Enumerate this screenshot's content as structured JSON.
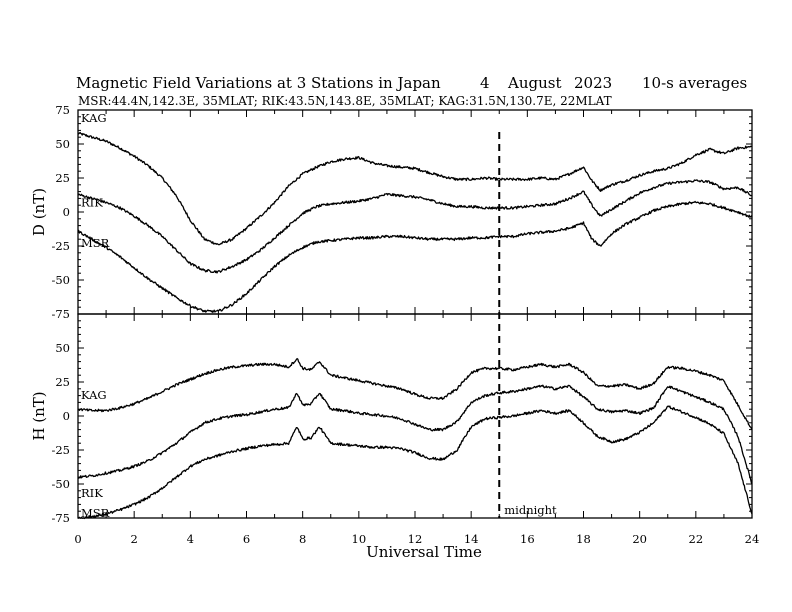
{
  "title": {
    "main": "Magnetic Field Variations at 3 Stations in Japan",
    "day": "4",
    "month": "August",
    "year": "2023",
    "averaging": "10-s averages"
  },
  "subtitle": "MSR:44.4N,142.3E, 35MLAT;  RIK:43.5N,143.8E, 35MLAT;  KAG:31.5N,130.7E, 22MLAT",
  "chart_data": [
    {
      "type": "line",
      "panel": "D",
      "ylabel": "D (nT)",
      "xlabel": "",
      "xlim": [
        0,
        24
      ],
      "ylim": [
        -75,
        75
      ],
      "yticks": [
        75,
        50,
        25,
        0,
        -25,
        -50,
        -75
      ],
      "xticks": [
        0,
        2,
        4,
        6,
        8,
        10,
        12,
        14,
        16,
        18,
        20,
        22,
        24
      ],
      "series": [
        {
          "name": "KAG",
          "x": [
            0,
            0.5,
            1,
            1.5,
            2,
            2.5,
            3,
            3.5,
            4,
            4.5,
            5,
            5.5,
            6,
            6.5,
            7,
            7.5,
            8,
            8.5,
            9,
            9.5,
            10,
            10.5,
            11,
            11.5,
            12,
            12.5,
            13,
            13.5,
            14,
            14.5,
            15,
            15.5,
            16,
            16.5,
            17,
            17.5,
            18,
            18.3,
            18.6,
            19,
            19.5,
            20,
            20.5,
            21,
            21.5,
            22,
            22.5,
            23,
            23.5,
            24
          ],
          "values": [
            58,
            55,
            52,
            47,
            41,
            34,
            25,
            12,
            -6,
            -20,
            -24,
            -20,
            -12,
            -3,
            7,
            19,
            28,
            33,
            37,
            39,
            40,
            36,
            34,
            33,
            32,
            29,
            26,
            24,
            24,
            25,
            24,
            24,
            24,
            25,
            24,
            28,
            33,
            23,
            16,
            20,
            23,
            27,
            30,
            32,
            36,
            42,
            46,
            43,
            47,
            48
          ]
        },
        {
          "name": "RIK",
          "x": [
            0,
            0.5,
            1,
            1.5,
            2,
            2.5,
            3,
            3.5,
            4,
            4.5,
            5,
            5.5,
            6,
            6.5,
            7,
            7.5,
            8,
            8.5,
            9,
            9.5,
            10,
            10.5,
            11,
            11.5,
            12,
            12.5,
            13,
            13.5,
            14,
            14.5,
            15,
            15.5,
            16,
            16.5,
            17,
            17.5,
            18,
            18.3,
            18.6,
            19,
            19.5,
            20,
            20.5,
            21,
            21.5,
            22,
            22.5,
            23,
            23.5,
            24
          ],
          "values": [
            13,
            10,
            7,
            3,
            -3,
            -10,
            -18,
            -28,
            -38,
            -43,
            -44,
            -40,
            -35,
            -28,
            -19,
            -10,
            -1,
            4,
            6,
            7,
            8,
            10,
            13,
            12,
            11,
            9,
            6,
            4,
            4,
            3,
            3,
            3,
            4,
            5,
            6,
            10,
            15,
            5,
            -3,
            2,
            8,
            14,
            18,
            21,
            22,
            23,
            22,
            17,
            18,
            12
          ]
        },
        {
          "name": "MSR",
          "x": [
            0,
            0.5,
            1,
            1.5,
            2,
            2.5,
            3,
            3.5,
            4,
            4.5,
            5,
            5.5,
            6,
            6.5,
            7,
            7.5,
            8,
            8.5,
            9,
            9.5,
            10,
            10.5,
            11,
            11.5,
            12,
            12.5,
            13,
            13.5,
            14,
            14.5,
            15,
            15.5,
            16,
            16.5,
            17,
            17.5,
            18,
            18.3,
            18.6,
            19,
            19.5,
            20,
            20.5,
            21,
            21.5,
            22,
            22.5,
            23,
            23.5,
            24
          ],
          "values": [
            -14,
            -20,
            -26,
            -33,
            -41,
            -49,
            -56,
            -63,
            -69,
            -73,
            -73,
            -68,
            -60,
            -50,
            -40,
            -32,
            -26,
            -22,
            -21,
            -20,
            -19,
            -19,
            -18,
            -18,
            -19,
            -20,
            -20,
            -20,
            -19,
            -19,
            -18,
            -18,
            -16,
            -15,
            -14,
            -12,
            -8,
            -20,
            -25,
            -16,
            -9,
            -4,
            1,
            4,
            6,
            7,
            6,
            3,
            0,
            -4
          ]
        }
      ]
    },
    {
      "type": "line",
      "panel": "H",
      "ylabel": "H (nT)",
      "xlabel": "Universal Time",
      "xlim": [
        0,
        24
      ],
      "ylim": [
        -75,
        75
      ],
      "yticks": [
        50,
        25,
        0,
        -25,
        -50,
        -75
      ],
      "xticks": [
        0,
        2,
        4,
        6,
        8,
        10,
        12,
        14,
        16,
        18,
        20,
        22,
        24
      ],
      "annotation": "midnight",
      "midnight_ut": 15,
      "series": [
        {
          "name": "KAG",
          "x": [
            0,
            0.5,
            1,
            1.5,
            2,
            2.5,
            3,
            3.5,
            4,
            4.5,
            5,
            5.5,
            6,
            6.5,
            7,
            7.5,
            7.8,
            8,
            8.3,
            8.6,
            9,
            9.5,
            10,
            10.5,
            11,
            11.5,
            12,
            12.5,
            13,
            13.5,
            14,
            14.5,
            15,
            15.5,
            16,
            16.5,
            17,
            17.5,
            18,
            18.5,
            19,
            19.5,
            20,
            20.5,
            21,
            21.5,
            22,
            22.5,
            23,
            23.5,
            24
          ],
          "values": [
            5,
            4,
            4,
            6,
            9,
            13,
            18,
            23,
            27,
            31,
            34,
            36,
            37,
            38,
            38,
            36,
            42,
            35,
            34,
            40,
            30,
            28,
            26,
            24,
            22,
            20,
            16,
            13,
            13,
            20,
            32,
            35,
            35,
            34,
            36,
            38,
            36,
            38,
            32,
            22,
            22,
            23,
            20,
            24,
            36,
            35,
            33,
            30,
            26,
            8,
            -10
          ]
        },
        {
          "name": "RIK",
          "x": [
            0,
            0.5,
            1,
            1.5,
            2,
            2.5,
            3,
            3.5,
            4,
            4.5,
            5,
            5.5,
            6,
            6.5,
            7,
            7.5,
            7.8,
            8,
            8.3,
            8.6,
            9,
            9.5,
            10,
            10.5,
            11,
            11.5,
            12,
            12.5,
            13,
            13.5,
            14,
            14.5,
            15,
            15.5,
            16,
            16.5,
            17,
            17.5,
            18,
            18.5,
            19,
            19.5,
            20,
            20.5,
            21,
            21.5,
            22,
            22.5,
            23,
            23.5,
            24
          ],
          "values": [
            -45,
            -44,
            -42,
            -40,
            -37,
            -33,
            -27,
            -20,
            -12,
            -5,
            -2,
            0,
            1,
            3,
            5,
            6,
            17,
            8,
            9,
            17,
            5,
            4,
            2,
            1,
            0,
            -2,
            -6,
            -10,
            -10,
            -4,
            10,
            15,
            17,
            18,
            20,
            22,
            20,
            22,
            14,
            5,
            3,
            4,
            2,
            6,
            22,
            18,
            14,
            10,
            5,
            -15,
            -50
          ]
        },
        {
          "name": "MSR",
          "x": [
            0,
            0.5,
            1,
            1.5,
            2,
            2.5,
            3,
            3.5,
            4,
            4.5,
            5,
            5.5,
            6,
            6.5,
            7,
            7.5,
            7.8,
            8,
            8.3,
            8.6,
            9,
            9.5,
            10,
            10.5,
            11,
            11.5,
            12,
            12.5,
            13,
            13.5,
            14,
            14.5,
            15,
            15.5,
            16,
            16.5,
            17,
            17.5,
            18,
            18.5,
            19,
            19.5,
            20,
            20.5,
            21,
            21.5,
            22,
            22.5,
            23,
            23.5,
            24
          ],
          "values": [
            -75,
            -74,
            -72,
            -69,
            -65,
            -60,
            -53,
            -45,
            -37,
            -32,
            -29,
            -26,
            -24,
            -22,
            -21,
            -20,
            -8,
            -17,
            -16,
            -8,
            -20,
            -21,
            -22,
            -23,
            -23,
            -24,
            -27,
            -31,
            -32,
            -25,
            -8,
            -2,
            -1,
            0,
            2,
            4,
            2,
            4,
            -5,
            -15,
            -19,
            -17,
            -12,
            -5,
            7,
            3,
            -1,
            -6,
            -13,
            -35,
            -72
          ]
        }
      ]
    }
  ]
}
